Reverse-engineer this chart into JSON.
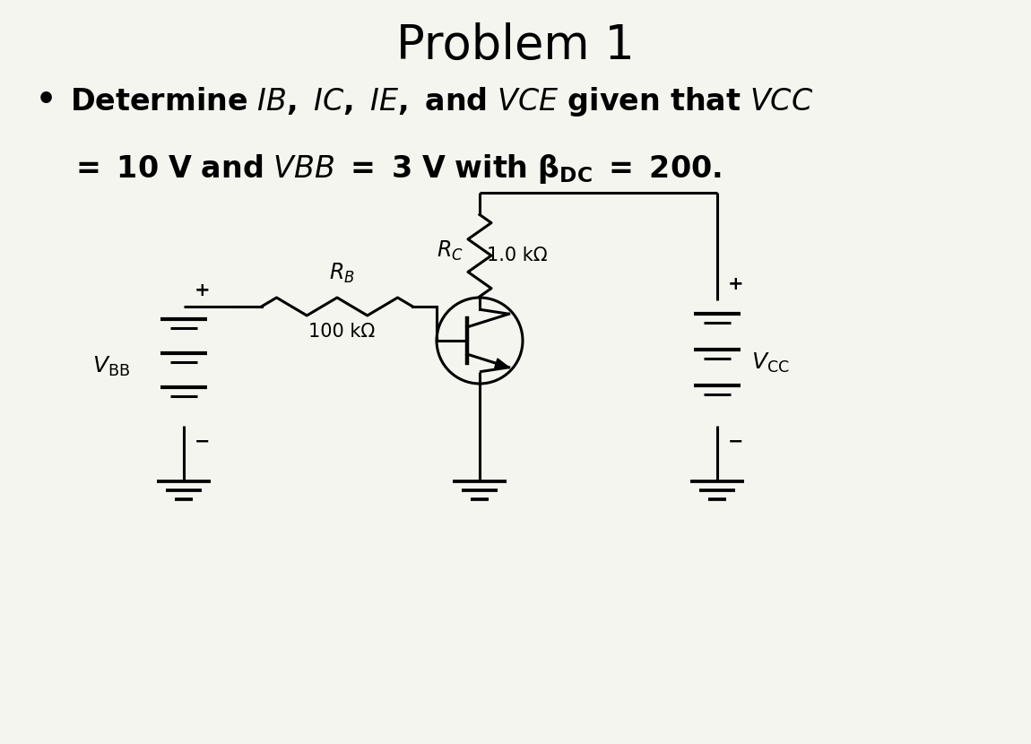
{
  "title": "Problem 1",
  "bg_color": "#f5f5f0",
  "text_color": "#000000",
  "title_fontsize": 38,
  "bullet_fontsize": 24,
  "circuit": {
    "vbb_label": "$V_{\\mathrm{BB}}$",
    "rb_label": "$R_B$",
    "rb_value": "100 kΩ",
    "rc_label": "$R_C$",
    "rc_value": "1.0 kΩ",
    "vcc_label": "$V_{\\mathrm{CC}}$",
    "plus": "+",
    "minus": "−"
  }
}
